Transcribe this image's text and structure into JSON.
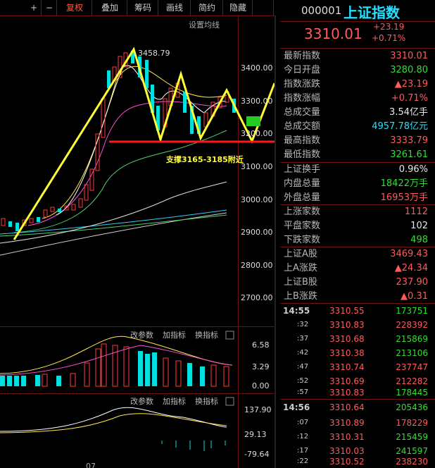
{
  "toolbar": [
    "+",
    "−",
    "复权",
    "叠加",
    "筹码",
    "画线",
    "简约",
    "隐藏"
  ],
  "chart": {
    "ma_setting": "设置均线",
    "peak_label": "3458.79",
    "annotation": "支撑3165-3185附近",
    "price_axis": [
      "3400.00",
      "3300.00",
      "3200.00",
      "3100.00",
      "3000.00",
      "2900.00",
      "2800.00",
      "2700.00"
    ],
    "volume_tools": [
      "改参数",
      "加指标",
      "换指标"
    ],
    "volume_axis": [
      "6.58",
      "3.29",
      "0.00"
    ],
    "macd_tools": [
      "改参数",
      "加指标",
      "换指标"
    ],
    "macd_axis": [
      "137.90",
      "29.13",
      "-79.64"
    ],
    "date_label": "07"
  },
  "quote": {
    "code": "000001",
    "name": "上证指数",
    "price": "3310.01",
    "change": "+23.19",
    "change_pct": "+0.71%",
    "stats": [
      {
        "label": "最新指数",
        "value": "3310.01",
        "color": "#ff5b5b"
      },
      {
        "label": "今日开盘",
        "value": "3280.80",
        "color": "#33dd33"
      },
      {
        "label": "指数涨跌",
        "value": "▲23.19",
        "color": "#ff5b5b"
      },
      {
        "label": "指数涨幅",
        "value": "+0.71%",
        "color": "#ff5b5b"
      },
      {
        "label": "总成交量",
        "value": "3.54亿手",
        "color": "#e8e8e8"
      },
      {
        "label": "总成交额",
        "value": "4957.78亿元",
        "color": "#22e0ff"
      },
      {
        "label": "最高指数",
        "value": "3333.79",
        "color": "#ff5b5b"
      },
      {
        "label": "最低指数",
        "value": "3261.61",
        "color": "#33dd33"
      },
      {
        "label": "上证换手",
        "value": "0.96%",
        "color": "#e8e8e8"
      },
      {
        "label": "内盘总量",
        "value": "18422万手",
        "color": "#33dd33"
      },
      {
        "label": "外盘总量",
        "value": "16953万手",
        "color": "#ff5b5b"
      },
      {
        "label": "上涨家数",
        "value": "1112",
        "color": "#ff5b5b"
      },
      {
        "label": "平盘家数",
        "value": "102",
        "color": "#e8e8e8"
      },
      {
        "label": "下跌家数",
        "value": "498",
        "color": "#33dd33"
      },
      {
        "label": "上证A股",
        "value": "3469.43",
        "color": "#ff5b5b"
      },
      {
        "label": "上A涨跌",
        "value": "▲24.34",
        "color": "#ff5b5b"
      },
      {
        "label": "上证B股",
        "value": "237.90",
        "color": "#ff5b5b"
      },
      {
        "label": "上B涨跌",
        "value": "▲0.31",
        "color": "#ff5b5b"
      }
    ],
    "trades": [
      {
        "time": "14:55",
        "price": "3310.55",
        "volume": "173751",
        "color": "#33dd33"
      },
      {
        "time": ":32",
        "price": "3310.83",
        "volume": "228392",
        "color": "#ff5b5b"
      },
      {
        "time": ":37",
        "price": "3310.68",
        "volume": "215869",
        "color": "#33dd33"
      },
      {
        "time": ":42",
        "price": "3310.38",
        "volume": "213106",
        "color": "#33dd33"
      },
      {
        "time": ":47",
        "price": "3310.74",
        "volume": "237747",
        "color": "#ff5b5b"
      },
      {
        "time": ":52",
        "price": "3310.69",
        "volume": "212282",
        "color": "#ff5b5b"
      },
      {
        "time": ":57",
        "price": "3310.83",
        "volume": "178445",
        "color": "#33dd33"
      },
      {
        "time": "14:56",
        "price": "3310.64",
        "volume": "205436",
        "color": "#33dd33"
      },
      {
        "time": ":07",
        "price": "3310.89",
        "volume": "178229",
        "color": "#ff5b5b"
      },
      {
        "time": ":12",
        "price": "3310.31",
        "volume": "215459",
        "color": "#33dd33"
      },
      {
        "time": ":17",
        "price": "3310.03",
        "volume": "241597",
        "color": "#33dd33"
      },
      {
        "time": ":22",
        "price": "3310.52",
        "volume": "238230",
        "color": "#ff5b5b"
      }
    ]
  }
}
